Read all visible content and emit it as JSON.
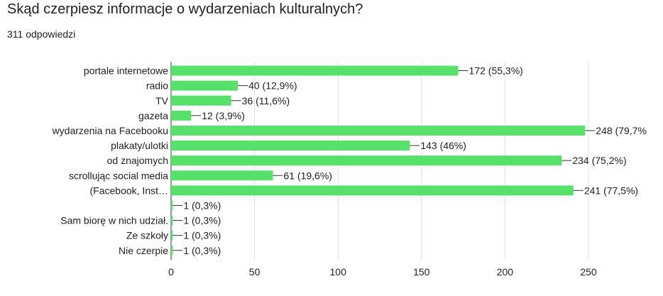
{
  "question": "Skąd czerpiesz informacje o wydarzeniach kulturalnych?",
  "responses": "311 odpowiedzi",
  "colors": {
    "bar": "#57e16b",
    "grid": "#e0e0e0",
    "text": "#202124",
    "axis": "#333333"
  },
  "chart_data": {
    "type": "bar",
    "orientation": "horizontal",
    "categories": [
      "portale internetowe",
      "radio",
      "TV",
      "gazeta",
      "wydarzenia na Facebooku",
      "plakaty/ulotki",
      "od znajomych",
      "scrollując social media (Facebook, Instagram)",
      "scrollując social media (Facebook, Inst…",
      "",
      "Sam biorę w nich udział.",
      "Ze szkoły",
      "Nie czerpie"
    ],
    "category_labels": [
      [
        "portale internetowe"
      ],
      [
        "radio"
      ],
      [
        "TV"
      ],
      [
        "gazeta"
      ],
      [
        "wydarzenia na Facebooku"
      ],
      [
        "plakaty/ulotki"
      ],
      [
        "od znajomych"
      ],
      [
        "scrollując social media"
      ],
      [
        "(Facebook, Inst…"
      ],
      [],
      [
        "Sam biorę w nich udział."
      ],
      [
        "Ze szkoły"
      ],
      [
        "Nie czerpie"
      ]
    ],
    "values": [
      172,
      40,
      36,
      12,
      248,
      143,
      234,
      61,
      241,
      1,
      1,
      1,
      1
    ],
    "data_labels": [
      "172 (55,3%)",
      "40 (12,9%)",
      "36 (11,6%)",
      "12 (3,9%)",
      "248 (79,7%",
      "143 (46%)",
      "234 (75,2%)",
      "61 (19,6%)",
      "241 (77,5%)",
      "1 (0,3%)",
      "1 (0,3%)",
      "1 (0,3%)",
      "1 (0,3%)"
    ],
    "xlim": [
      0,
      250
    ],
    "xticks": [
      "0",
      "50",
      "100",
      "150",
      "200",
      "250"
    ],
    "grid": true
  }
}
